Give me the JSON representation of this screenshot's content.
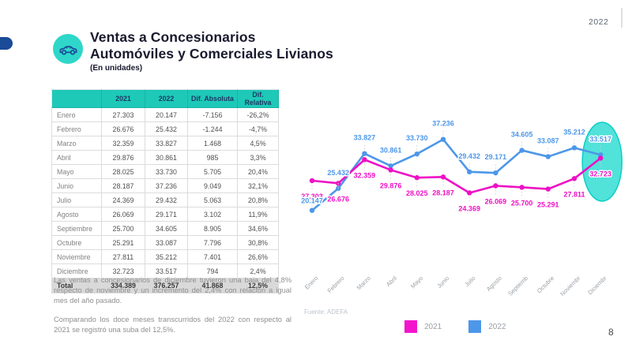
{
  "slide": {
    "title_line1": "Ventas a Concesionarios",
    "title_line2": "Automóviles y Comerciales Livianos",
    "subtitle": "(En unidades)",
    "year": "2022",
    "source": "Fuente: ADEFA",
    "page_number": "8"
  },
  "colors": {
    "accent_teal": "#1EC9B8",
    "badge_teal": "#2ED7C9",
    "highlight_ellipse_fill": "#3EDFD6",
    "highlight_ellipse_stroke": "#0CCEC6",
    "series_2021": "#EE10C5",
    "series_2022": "#4D97E8",
    "navy": "#1F3864",
    "dark_blue_pill": "#1B4A97"
  },
  "table": {
    "headers": [
      "",
      "2021",
      "2022",
      "Dif. Absoluta",
      "Dif. Relativa"
    ],
    "rows": [
      [
        "Enero",
        "27.303",
        "20.147",
        "-7.156",
        "-26,2%"
      ],
      [
        "Febrero",
        "26.676",
        "25.432",
        "-1.244",
        "-4,7%"
      ],
      [
        "Marzo",
        "32.359",
        "33.827",
        "1.468",
        "4,5%"
      ],
      [
        "Abril",
        "29.876",
        "30.861",
        "985",
        "3,3%"
      ],
      [
        "Mayo",
        "28.025",
        "33.730",
        "5.705",
        "20,4%"
      ],
      [
        "Junio",
        "28.187",
        "37.236",
        "9.049",
        "32,1%"
      ],
      [
        "Julio",
        "24.369",
        "29.432",
        "5.063",
        "20,8%"
      ],
      [
        "Agosto",
        "26.069",
        "29.171",
        "3.102",
        "11,9%"
      ],
      [
        "Septiembre",
        "25.700",
        "34.605",
        "8.905",
        "34,6%"
      ],
      [
        "Octubre",
        "25.291",
        "33.087",
        "7.796",
        "30,8%"
      ],
      [
        "Noviembre",
        "27.811",
        "35.212",
        "7.401",
        "26,6%"
      ],
      [
        "Diciembre",
        "32.723",
        "33.517",
        "794",
        "2,4%"
      ]
    ],
    "total": [
      "Total",
      "334.389",
      "376.257",
      "41.868",
      "12,5%"
    ]
  },
  "paragraphs": [
    "Las ventas a concesionarios de diciembre tuvieron una baja del 4,8% respecto de noviembre y un incremento del 2,4% con relación a igual mes del año pasado.",
    "Comparando los doce meses transcurridos del 2022 con respecto al 2021 se registró una suba del 12,5%."
  ],
  "chart_data": {
    "type": "line",
    "title": "",
    "categories": [
      "Enero",
      "Febrero",
      "Marzo",
      "Abril",
      "Mayo",
      "Junio",
      "Julio",
      "Agosto",
      "Septiemb",
      "Octubre",
      "Noviembr",
      "Diciembr"
    ],
    "series": [
      {
        "name": "2021",
        "color": "#EE10C5",
        "values": [
          27303,
          26676,
          32359,
          29876,
          28025,
          28187,
          24369,
          26069,
          25700,
          25291,
          27811,
          32723
        ],
        "labels": [
          "27.303",
          "26.676",
          "32.359",
          "29.876",
          "28.025",
          "28.187",
          "24.369",
          "26.069",
          "25.700",
          "25.291",
          "27.811",
          "32.723"
        ]
      },
      {
        "name": "2022",
        "color": "#4D97E8",
        "values": [
          20147,
          25432,
          33827,
          30861,
          33730,
          37236,
          29432,
          29171,
          34605,
          33087,
          35212,
          33517
        ],
        "labels": [
          "20.147",
          "25.432",
          "33.827",
          "30.861",
          "33.730",
          "37.236",
          "29.432",
          "29.171",
          "34.605",
          "33.087",
          "35.212",
          "33.517"
        ]
      }
    ],
    "ylim": [
      20147,
      37236
    ],
    "grid": false,
    "legend_position": "bottom",
    "highlight_index": 11
  }
}
